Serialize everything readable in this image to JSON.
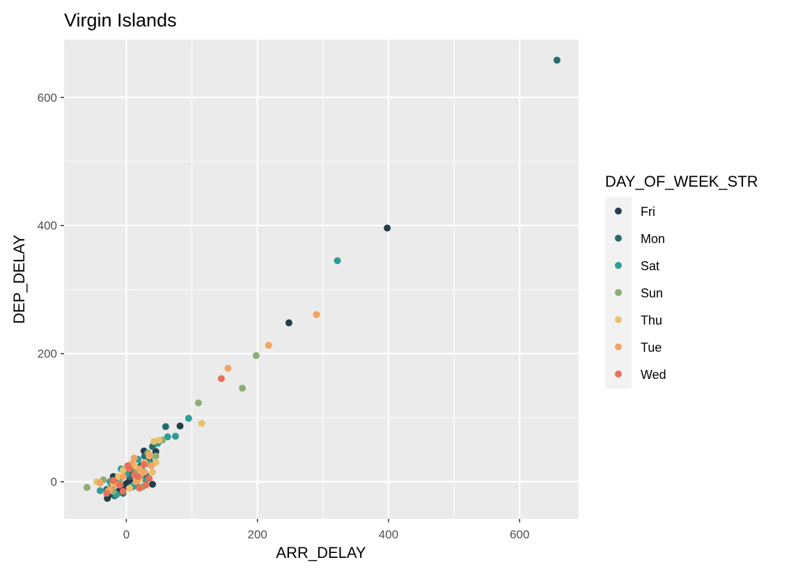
{
  "chart_data": {
    "type": "scatter",
    "title": "Virgin Islands",
    "xlabel": "ARR_DELAY",
    "ylabel": "DEP_DELAY",
    "xlim": [
      -95,
      690
    ],
    "ylim": [
      -58,
      690
    ],
    "x_ticks": [
      0,
      200,
      400,
      600
    ],
    "y_ticks": [
      0,
      200,
      400,
      600
    ],
    "x_ticks_minor": [
      -100,
      100,
      300,
      500
    ],
    "y_ticks_minor": [
      100,
      300,
      500
    ],
    "grid": true,
    "legend": {
      "title": "DAY_OF_WEEK_STR",
      "position": "right"
    },
    "series": [
      {
        "name": "Fri",
        "color": "#253d4a",
        "points": [
          [
            398,
            396
          ],
          [
            248,
            248
          ],
          [
            82,
            87
          ],
          [
            40,
            -4
          ],
          [
            27,
            48
          ],
          [
            16,
            17
          ],
          [
            -20,
            8
          ],
          [
            -29,
            -26
          ],
          [
            -12,
            -15
          ],
          [
            5,
            2
          ],
          [
            30,
            30
          ],
          [
            45,
            47
          ],
          [
            -25,
            -20
          ],
          [
            -5,
            -12
          ],
          [
            20,
            5
          ],
          [
            35,
            38
          ],
          [
            10,
            20
          ],
          [
            -15,
            3
          ],
          [
            0,
            -3
          ],
          [
            25,
            15
          ]
        ]
      },
      {
        "name": "Mon",
        "color": "#276d6e",
        "points": [
          [
            657,
            658
          ],
          [
            60,
            86
          ],
          [
            37,
            30
          ],
          [
            12,
            12
          ],
          [
            -22,
            -5
          ],
          [
            -10,
            5
          ],
          [
            15,
            -5
          ],
          [
            28,
            40
          ],
          [
            -30,
            -12
          ],
          [
            5,
            8
          ],
          [
            22,
            25
          ],
          [
            -5,
            -18
          ],
          [
            40,
            55
          ],
          [
            -18,
            -22
          ],
          [
            8,
            15
          ],
          [
            30,
            10
          ]
        ]
      },
      {
        "name": "Sat",
        "color": "#2e9e96",
        "points": [
          [
            322,
            345
          ],
          [
            95,
            99
          ],
          [
            75,
            71
          ],
          [
            63,
            70
          ],
          [
            -40,
            -14
          ],
          [
            -8,
            20
          ],
          [
            24,
            18
          ],
          [
            35,
            28
          ],
          [
            10,
            -8
          ],
          [
            -25,
            0
          ],
          [
            18,
            35
          ],
          [
            48,
            60
          ],
          [
            0,
            12
          ],
          [
            -15,
            -20
          ],
          [
            30,
            2
          ]
        ]
      },
      {
        "name": "Sun",
        "color": "#8cae75",
        "points": [
          [
            198,
            197
          ],
          [
            177,
            146
          ],
          [
            110,
            123
          ],
          [
            55,
            65
          ],
          [
            -60,
            -9
          ],
          [
            -20,
            -15
          ],
          [
            2,
            22
          ],
          [
            -35,
            3
          ],
          [
            15,
            15
          ],
          [
            33,
            45
          ],
          [
            -10,
            -2
          ],
          [
            25,
            -8
          ],
          [
            45,
            40
          ]
        ]
      },
      {
        "name": "Thu",
        "color": "#e8c16e",
        "points": [
          [
            115,
            91
          ],
          [
            42,
            63
          ],
          [
            45,
            30
          ],
          [
            40,
            15
          ],
          [
            -45,
            0
          ],
          [
            -20,
            -3
          ],
          [
            12,
            25
          ],
          [
            35,
            40
          ],
          [
            -5,
            18
          ],
          [
            20,
            3
          ],
          [
            -28,
            -15
          ],
          [
            5,
            -10
          ],
          [
            28,
            30
          ],
          [
            50,
            65
          ],
          [
            -12,
            8
          ],
          [
            22,
            12
          ]
        ]
      },
      {
        "name": "Tue",
        "color": "#f3a462",
        "points": [
          [
            290,
            261
          ],
          [
            217,
            213
          ],
          [
            155,
            177
          ],
          [
            12,
            37
          ],
          [
            35,
            42
          ],
          [
            -40,
            -2
          ],
          [
            -15,
            -5
          ],
          [
            -25,
            -12
          ],
          [
            20,
            20
          ],
          [
            8,
            28
          ],
          [
            28,
            15
          ],
          [
            -5,
            8
          ],
          [
            15,
            0
          ],
          [
            38,
            25
          ]
        ]
      },
      {
        "name": "Wed",
        "color": "#e8705a",
        "points": [
          [
            145,
            161
          ],
          [
            20,
            -10
          ],
          [
            2,
            25
          ],
          [
            35,
            5
          ],
          [
            -10,
            -5
          ],
          [
            -30,
            -18
          ],
          [
            12,
            10
          ],
          [
            27,
            27
          ],
          [
            -20,
            2
          ],
          [
            5,
            20
          ],
          [
            30,
            -5
          ],
          [
            -5,
            -15
          ],
          [
            18,
            8
          ]
        ]
      }
    ]
  }
}
